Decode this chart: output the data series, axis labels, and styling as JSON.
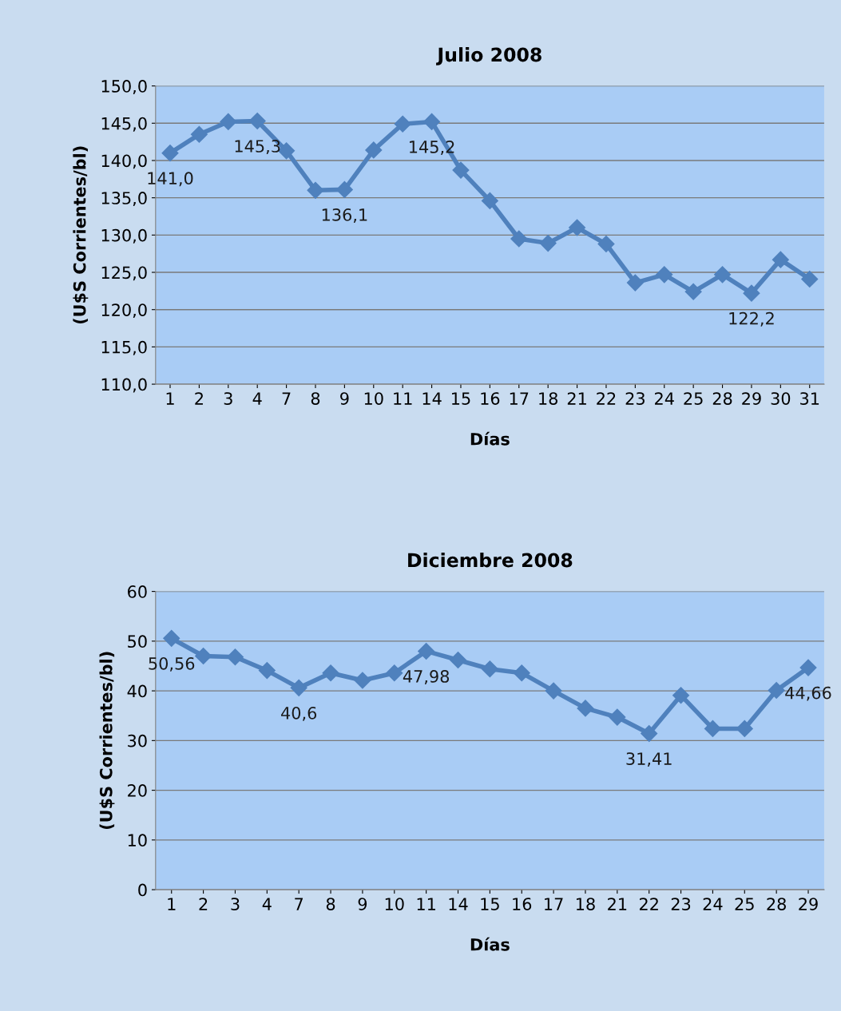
{
  "chart_data": [
    {
      "type": "line",
      "title": "Julio 2008",
      "xlabel": "Días",
      "ylabel": "(U$S Corrientes/bl)",
      "categories": [
        "1",
        "2",
        "3",
        "4",
        "7",
        "8",
        "9",
        "10",
        "11",
        "14",
        "15",
        "16",
        "17",
        "18",
        "21",
        "22",
        "23",
        "24",
        "25",
        "28",
        "29",
        "30",
        "31"
      ],
      "series": [
        {
          "color": "#4f81bd",
          "values": [
            141.0,
            143.5,
            145.2,
            145.3,
            141.3,
            136.0,
            136.1,
            141.4,
            144.9,
            145.2,
            138.7,
            134.6,
            129.5,
            128.9,
            131.0,
            128.8,
            123.6,
            124.7,
            122.4,
            124.7,
            122.2,
            126.7,
            124.1
          ],
          "value_labels": [
            "141,0",
            null,
            null,
            "145,3",
            null,
            null,
            "136,1",
            null,
            null,
            "145,2",
            null,
            null,
            null,
            null,
            null,
            null,
            null,
            null,
            null,
            null,
            "122,2",
            null,
            null
          ]
        }
      ],
      "ylim": [
        110,
        150
      ],
      "yticks": [
        {
          "value": 110,
          "label": "110,0"
        },
        {
          "value": 115,
          "label": "115,0"
        },
        {
          "value": 120,
          "label": "120,0"
        },
        {
          "value": 125,
          "label": "125,0"
        },
        {
          "value": 130,
          "label": "130,0"
        },
        {
          "value": 135,
          "label": "135,0"
        },
        {
          "value": 140,
          "label": "140,0"
        },
        {
          "value": 145,
          "label": "145,0"
        },
        {
          "value": 150,
          "label": "150,0"
        }
      ],
      "grid": "y",
      "marker": "diamond",
      "line_style": "solid",
      "legend": false
    },
    {
      "type": "line",
      "title": "Diciembre 2008",
      "xlabel": "Días",
      "ylabel": "(U$S Corrientes/bl)",
      "categories": [
        "1",
        "2",
        "3",
        "4",
        "7",
        "8",
        "9",
        "10",
        "11",
        "14",
        "15",
        "16",
        "17",
        "18",
        "21",
        "22",
        "23",
        "24",
        "25",
        "28",
        "29"
      ],
      "series": [
        {
          "color": "#4f81bd",
          "values": [
            50.56,
            47.0,
            46.8,
            44.1,
            40.6,
            43.6,
            42.1,
            43.6,
            47.98,
            46.2,
            44.4,
            43.6,
            40.0,
            36.5,
            34.7,
            31.41,
            39.1,
            32.4,
            32.4,
            40.1,
            44.66
          ],
          "value_labels": [
            "50,56",
            null,
            null,
            null,
            "40,6",
            null,
            null,
            null,
            "47,98",
            null,
            null,
            null,
            null,
            null,
            null,
            "31,41",
            null,
            null,
            null,
            null,
            "44,66"
          ]
        }
      ],
      "ylim": [
        0,
        60
      ],
      "yticks": [
        0,
        10,
        20,
        30,
        40,
        50,
        60
      ],
      "grid": "y",
      "marker": "diamond",
      "line_style": "solid",
      "legend": false
    }
  ]
}
